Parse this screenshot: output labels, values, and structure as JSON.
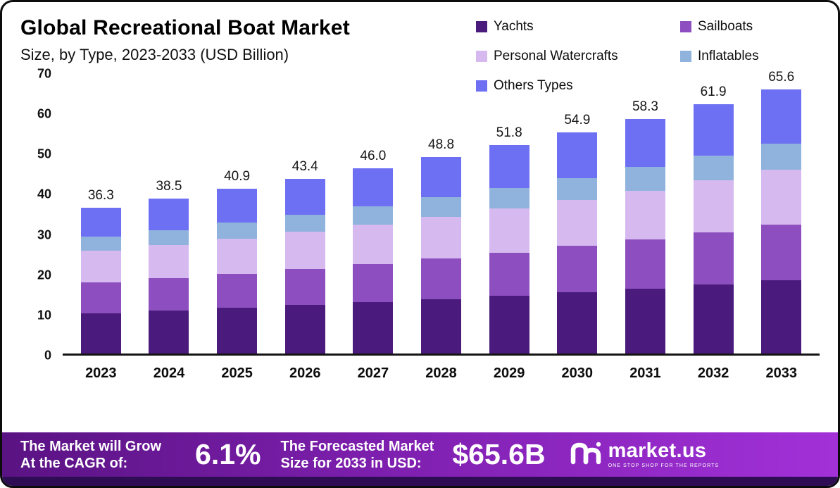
{
  "header": {
    "title": "Global Recreational Boat Market",
    "subtitle": "Size, by Type, 2023-2033 (USD Billion)"
  },
  "legend": [
    {
      "label": "Yachts",
      "color": "#4a1a7c"
    },
    {
      "label": "Sailboats",
      "color": "#8d4fbf"
    },
    {
      "label": "Personal Watercrafts",
      "color": "#d6b9ef"
    },
    {
      "label": "Inflatables",
      "color": "#8fb3dc"
    },
    {
      "label": "Others Types",
      "color": "#6e70f4"
    }
  ],
  "chart_data": {
    "type": "bar",
    "stacked": true,
    "title": "Global Recreational Boat Market Size, by Type, 2023-2033 (USD Billion)",
    "categories": [
      "2023",
      "2024",
      "2025",
      "2026",
      "2027",
      "2028",
      "2029",
      "2030",
      "2031",
      "2032",
      "2033"
    ],
    "series": [
      {
        "name": "Yachts",
        "color": "#4a1a7c",
        "values": [
          10.0,
          10.7,
          11.3,
          12.0,
          12.7,
          13.5,
          14.3,
          15.2,
          16.1,
          17.1,
          18.2
        ]
      },
      {
        "name": "Sailboats",
        "color": "#8d4fbf",
        "values": [
          7.6,
          8.0,
          8.5,
          9.0,
          9.6,
          10.2,
          10.8,
          11.5,
          12.2,
          13.0,
          13.8
        ]
      },
      {
        "name": "Personal Watercrafts",
        "color": "#d6b9ef",
        "values": [
          7.9,
          8.2,
          8.7,
          9.2,
          9.7,
          10.3,
          10.9,
          11.5,
          12.2,
          12.9,
          13.7
        ]
      },
      {
        "name": "Inflatables",
        "color": "#8fb3dc",
        "values": [
          3.6,
          3.8,
          4.0,
          4.3,
          4.5,
          4.8,
          5.1,
          5.4,
          5.8,
          6.1,
          6.5
        ]
      },
      {
        "name": "Others Types",
        "color": "#6e70f4",
        "values": [
          7.2,
          7.8,
          8.4,
          8.9,
          9.5,
          10.0,
          10.7,
          11.3,
          12.0,
          12.8,
          13.4
        ]
      }
    ],
    "totals": [
      "36.3",
      "38.5",
      "40.9",
      "43.4",
      "46.0",
      "48.8",
      "51.8",
      "54.9",
      "58.3",
      "61.9",
      "65.6"
    ],
    "xlabel": "",
    "ylabel": "",
    "ylim": [
      0,
      70
    ],
    "yticks": [
      0,
      10,
      20,
      30,
      40,
      50,
      60,
      70
    ],
    "grid": false,
    "legend_position": "top-right"
  },
  "footer": {
    "left_line1": "The Market will Grow",
    "left_line2": "At the CAGR of:",
    "cagr": "6.1%",
    "mid_line1": "The Forecasted Market",
    "mid_line2": "Size for 2033 in USD:",
    "forecast_value": "$65.6B",
    "brand": "market.us",
    "tagline": "ONE STOP SHOP FOR THE REPORTS"
  }
}
